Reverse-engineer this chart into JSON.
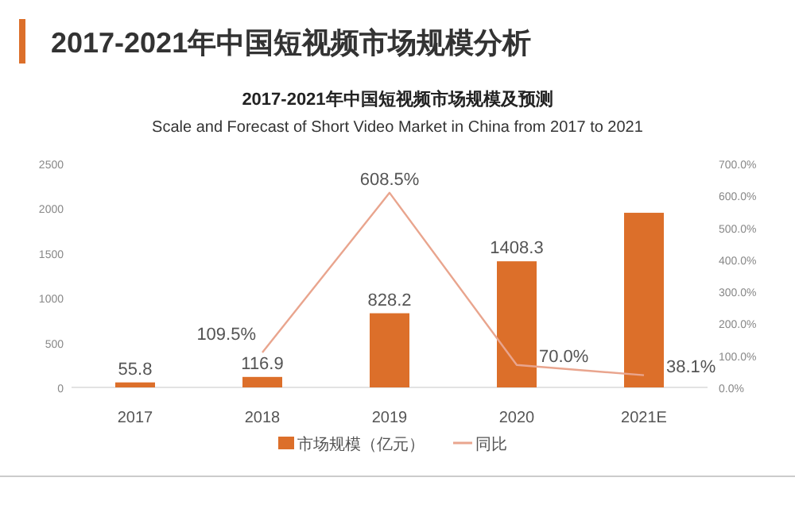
{
  "chart_data": {
    "type": "bar",
    "title": "2017-2021年中国短视频市场规模及预测",
    "subtitle": "Scale and Forecast of Short Video Market in China from 2017 to 2021",
    "annotations": [
      "2017-2021年中国短视频市场规模分析"
    ],
    "categories": [
      "2017",
      "2018",
      "2019",
      "2020",
      "2021E"
    ],
    "series": [
      {
        "name": "市场规模（亿元）",
        "color": "#dc6f2a",
        "values": [
          55.8,
          116.9,
          828.2,
          1408.3,
          1950
        ],
        "value_labels": [
          "55.8",
          "116.9",
          "828.2",
          "1408.3",
          null
        ]
      },
      {
        "name": "同比",
        "type": "line",
        "axis": "y2",
        "color": "#e9a58e",
        "values": [
          null,
          109.5,
          608.5,
          70.0,
          38.1
        ],
        "value_labels": [
          null,
          "109.5%",
          "608.5%",
          "70.0%",
          "38.1%"
        ]
      }
    ],
    "ylim": [
      0,
      2500
    ],
    "yticks": [
      0,
      500,
      1000,
      1500,
      2000,
      2500
    ],
    "y2lim": [
      0,
      700
    ],
    "y2ticks": [
      {
        "value": 0,
        "label": "0.0%"
      },
      {
        "value": 100,
        "label": "100.0%"
      },
      {
        "value": 200,
        "label": "200.0%"
      },
      {
        "value": 300,
        "label": "300.0%"
      },
      {
        "value": 400,
        "label": "400.0%"
      },
      {
        "value": 500,
        "label": "500.0%"
      },
      {
        "value": 600,
        "label": "600.0%"
      },
      {
        "value": 700,
        "label": "700.0%"
      }
    ],
    "legend": "bottom",
    "grid": false,
    "marker": "none",
    "line_style": "solid"
  }
}
